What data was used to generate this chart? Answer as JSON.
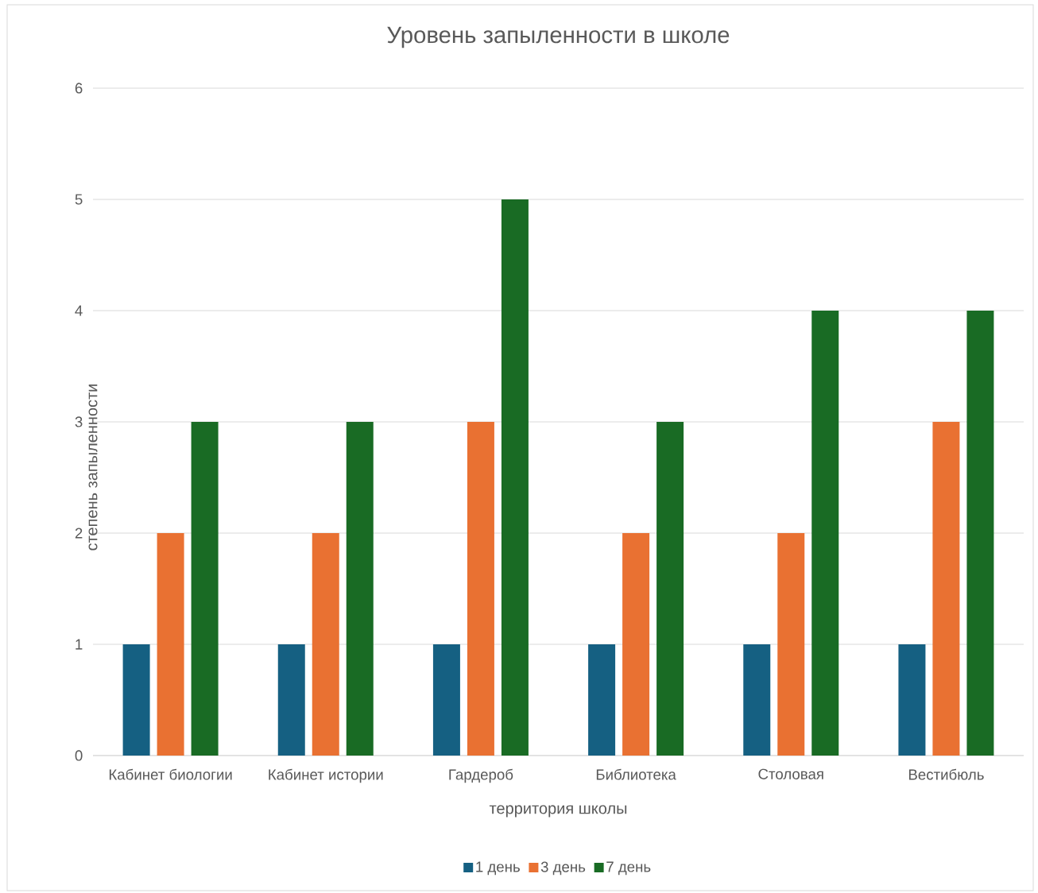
{
  "chart_data": {
    "type": "bar",
    "title": "Уровень запыленности в школе",
    "xlabel": "территория школы",
    "ylabel": "степень запыленности",
    "categories": [
      "Кабинет биологии",
      "Кабинет истории",
      "Гардероб",
      "Библиотека",
      "Столовая",
      "Вестибюль"
    ],
    "series": [
      {
        "name": "1 день",
        "color": "#156082",
        "values": [
          1,
          1,
          1,
          1,
          1,
          1
        ]
      },
      {
        "name": "3 день",
        "color": "#e97132",
        "values": [
          2,
          2,
          3,
          2,
          2,
          3
        ]
      },
      {
        "name": "7 день",
        "color": "#196b24",
        "values": [
          3,
          3,
          5,
          3,
          4,
          4
        ]
      }
    ],
    "ylim": [
      0,
      6
    ],
    "yticks": [
      0,
      1,
      2,
      3,
      4,
      5,
      6
    ],
    "grid": "y",
    "legend": "bottom"
  }
}
